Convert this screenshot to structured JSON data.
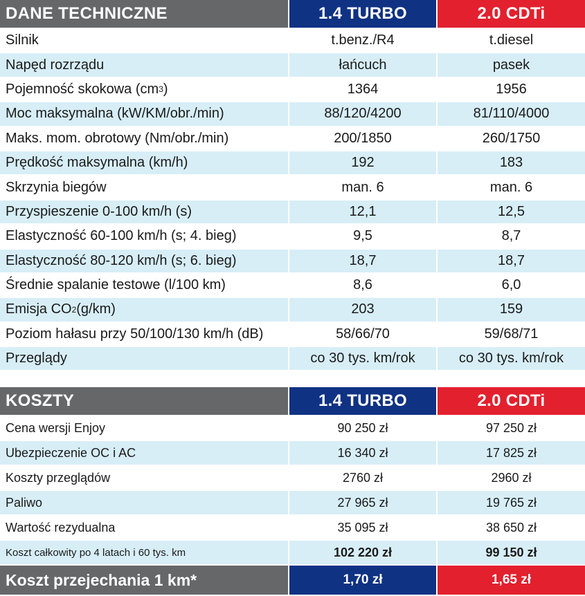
{
  "colors": {
    "header_gray": "#666769",
    "header_blue": "#0f3283",
    "header_red": "#e3202e",
    "row_alt": "#d7eef7"
  },
  "tech_table": {
    "header": {
      "title": "DANE TECHNICZNE",
      "col1": "1.4 TURBO",
      "col2": "2.0 CDTi"
    },
    "rows": [
      {
        "label": "Silnik",
        "v1": "t.benz./R4",
        "v2": "t.diesel"
      },
      {
        "label": "Napęd rozrządu",
        "v1": "łańcuch",
        "v2": "pasek"
      },
      {
        "label_pre": "Pojemność skokowa (cm",
        "label_sup": "3",
        "label_post": ")",
        "v1": "1364",
        "v2": "1956"
      },
      {
        "label": "Moc maksymalna (kW/KM/obr./min)",
        "v1": "88/120/4200",
        "v2": "81/110/4000"
      },
      {
        "label": "Maks. mom. obrotowy (Nm/obr./min)",
        "v1": "200/1850",
        "v2": "260/1750"
      },
      {
        "label": "Prędkość maksymalna (km/h)",
        "v1": "192",
        "v2": "183"
      },
      {
        "label": "Skrzynia biegów",
        "v1": "man. 6",
        "v2": "man. 6"
      },
      {
        "label": "Przyspieszenie 0-100 km/h (s)",
        "v1": "12,1",
        "v2": "12,5"
      },
      {
        "label": "Elastyczność 60-100 km/h (s; 4. bieg)",
        "v1": "9,5",
        "v2": "8,7"
      },
      {
        "label": "Elastyczność 80-120 km/h (s; 6. bieg)",
        "v1": "18,7",
        "v2": "18,7"
      },
      {
        "label": "Średnie spalanie testowe (l/100 km)",
        "v1": "8,6",
        "v2": "6,0"
      },
      {
        "label_pre": "Emisja CO",
        "label_sub": "2",
        "label_post": " (g/km)",
        "v1": "203",
        "v2": "159"
      },
      {
        "label": "Poziom hałasu przy 50/100/130 km/h (dB)",
        "v1": "58/66/70",
        "v2": "59/68/71"
      },
      {
        "label": "Przeglądy",
        "v1": "co 30 tys. km/rok",
        "v2": "co 30 tys. km/rok"
      }
    ]
  },
  "costs_table": {
    "header": {
      "title": "KOSZTY",
      "col1": "1.4 TURBO",
      "col2": "2.0 CDTi"
    },
    "rows": [
      {
        "label": "Cena wersji Enjoy",
        "v1": "90 250 zł",
        "v2": "97 250 zł"
      },
      {
        "label": "Ubezpieczenie OC i AC",
        "v1": "16 340 zł",
        "v2": "17 825 zł"
      },
      {
        "label": "Koszty przeglądów",
        "v1": "2760 zł",
        "v2": "2960 zł"
      },
      {
        "label": "Paliwo",
        "v1": "27 965 zł",
        "v2": "19 765 zł"
      },
      {
        "label": "Wartość rezydualna",
        "v1": "35 095 zł",
        "v2": "38 650 zł"
      },
      {
        "label": "Koszt całkowity po 4 latach i 60 tys. km",
        "v1": "102 220 zł",
        "v2": "99 150 zł"
      }
    ],
    "final": {
      "label": "Koszt przejechania 1 km*",
      "v1": "1,70 zł",
      "v2": "1,65 zł"
    }
  }
}
